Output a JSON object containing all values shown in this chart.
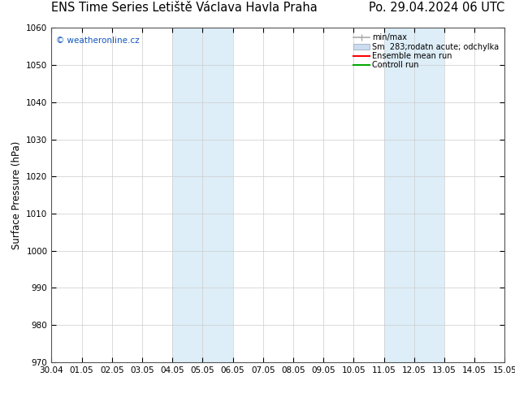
{
  "title_left": "ENS Time Series Letiště Václava Havla Praha",
  "title_right": "Po. 29.04.2024 06 UTC",
  "ylabel": "Surface Pressure (hPa)",
  "ylim": [
    970,
    1060
  ],
  "yticks": [
    970,
    980,
    990,
    1000,
    1010,
    1020,
    1030,
    1040,
    1050,
    1060
  ],
  "xlim_start": 0,
  "xlim_end": 15,
  "xtick_labels": [
    "30.04",
    "01.05",
    "02.05",
    "03.05",
    "04.05",
    "05.05",
    "06.05",
    "07.05",
    "08.05",
    "09.05",
    "10.05",
    "11.05",
    "12.05",
    "13.05",
    "14.05",
    "15.05"
  ],
  "shaded_bands": [
    {
      "xmin": 4,
      "xmax": 6,
      "color": "#ddeef8"
    },
    {
      "xmin": 11,
      "xmax": 13,
      "color": "#ddeef8"
    }
  ],
  "watermark": "© weatheronline.cz",
  "watermark_color": "#1155bb",
  "background_color": "#ffffff",
  "plot_bg_color": "#ffffff",
  "grid_color": "#cccccc",
  "title_fontsize": 10.5,
  "axis_label_fontsize": 8.5,
  "tick_fontsize": 7.5,
  "legend_color_minmax": "#aaaaaa",
  "legend_color_spread": "#ccddf0",
  "legend_color_ensemble": "#ff0000",
  "legend_color_control": "#00aa00"
}
